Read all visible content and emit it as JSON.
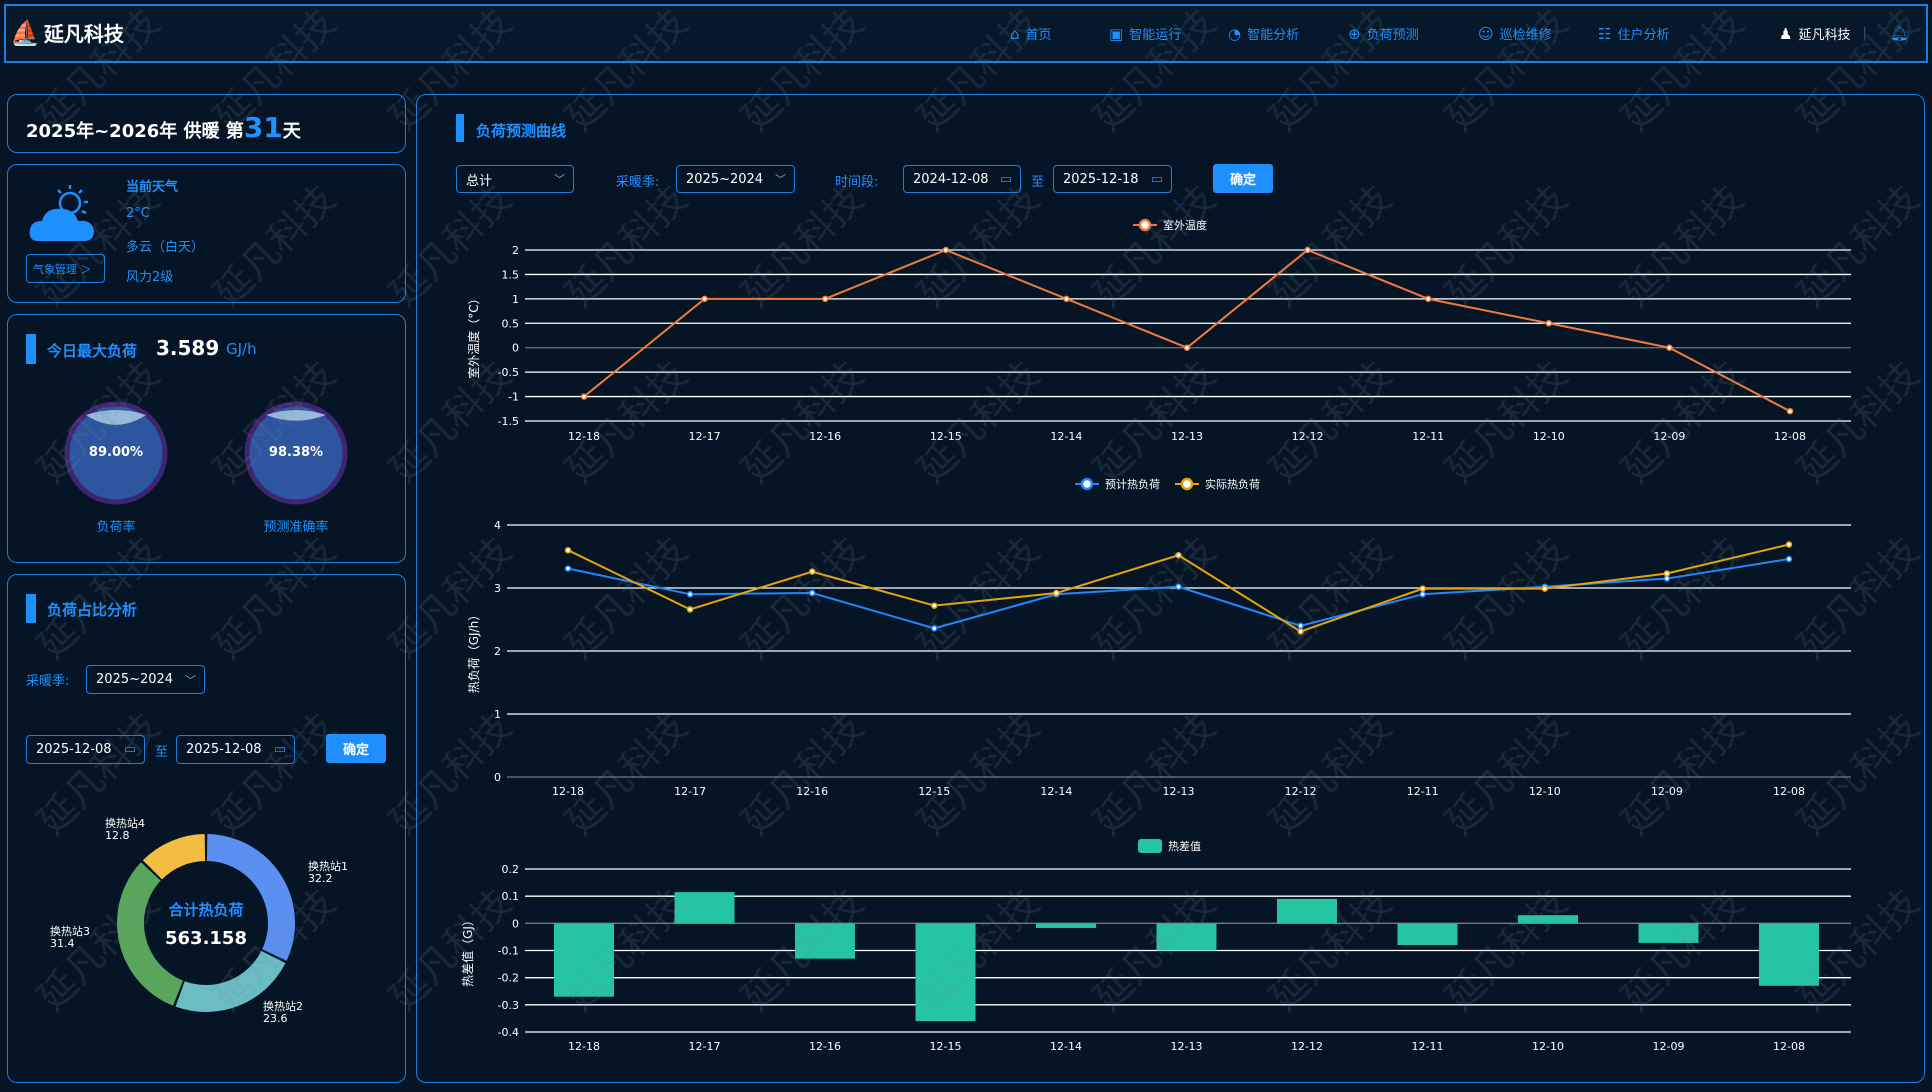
{
  "header": {
    "logo": "延凡科技",
    "nav": [
      {
        "icon": "home-icon",
        "label": "首页"
      },
      {
        "icon": "monitor-icon",
        "label": "智能运行"
      },
      {
        "icon": "pie-chart-icon",
        "label": "智能分析"
      },
      {
        "icon": "forecast-icon",
        "label": "负荷预测"
      },
      {
        "icon": "engineer-icon",
        "label": "巡检维修"
      },
      {
        "icon": "residents-icon",
        "label": "住户分析"
      }
    ],
    "user": "延凡科技"
  },
  "season": {
    "prefix": "2025年~2026年 供暖 第",
    "day": "31",
    "suffix": "天"
  },
  "weather": {
    "title": "当前天气",
    "temp": "2°C",
    "condition": "多云（白天）",
    "wind": "风力2级",
    "manage_btn": "气象管理 ＞"
  },
  "maxload": {
    "title": "今日最大负荷",
    "value": "3.589",
    "unit": "GJ/h",
    "gauges": [
      {
        "value": "89.00%",
        "fraction": 0.89,
        "label": "负荷率"
      },
      {
        "value": "98.38%",
        "fraction": 0.9838,
        "label": "预测准确率"
      }
    ]
  },
  "ratio": {
    "title": "负荷占比分析",
    "season_label": "采暖季:",
    "season_value": "2025~2024",
    "date_from": "2025-12-08",
    "to": "至",
    "date_to": "2025-12-08",
    "confirm": "确定",
    "center_title": "合计热负荷",
    "center_value": "563.158"
  },
  "forecast": {
    "title": "负荷预测曲线",
    "type_value": "总计",
    "season_label": "采暖季:",
    "season_value": "2025~2024",
    "period_label": "时间段:",
    "date_from": "2024-12-08",
    "to": "至",
    "date_to": "2025-12-18",
    "confirm": "确定"
  },
  "watermark": "延凡科技",
  "chart_data": [
    {
      "type": "pie",
      "title": "合计热负荷",
      "categories": [
        "换热站1",
        "换热站2",
        "换热站3",
        "换热站4"
      ],
      "values": [
        32.2,
        23.6,
        31.4,
        12.8
      ],
      "colors": [
        "#5b8ff0",
        "#6cbcc4",
        "#5aa55c",
        "#f2bd42"
      ]
    },
    {
      "type": "line",
      "categories": [
        "12-18",
        "12-17",
        "12-16",
        "12-15",
        "12-14",
        "12-13",
        "12-12",
        "12-11",
        "12-10",
        "12-09",
        "12-08"
      ],
      "series": [
        {
          "name": "室外温度",
          "values": [
            -1,
            1,
            1,
            2,
            1,
            0,
            2,
            1,
            0.5,
            0,
            -1.3
          ],
          "color": "#f07a3a"
        }
      ],
      "ylabel": "室外温度（°C）",
      "ylim": [
        -1.5,
        2
      ],
      "yticks": [
        "2",
        "1.5",
        "1",
        "0.5",
        "0",
        "-0.5",
        "-1",
        "-1.5"
      ],
      "legend": "top-center"
    },
    {
      "type": "line",
      "categories": [
        "12-18",
        "12-17",
        "12-16",
        "12-15",
        "12-14",
        "12-13",
        "12-12",
        "12-11",
        "12-10",
        "12-09",
        "12-08"
      ],
      "series": [
        {
          "name": "预计热负荷",
          "values": [
            3.31,
            2.9,
            2.92,
            2.36,
            2.9,
            3.02,
            2.4,
            2.9,
            3.02,
            3.15,
            3.46
          ],
          "color": "#1e88ff"
        },
        {
          "name": "实际热负荷",
          "values": [
            3.6,
            2.66,
            3.26,
            2.72,
            2.92,
            3.52,
            2.31,
            2.99,
            2.99,
            3.23,
            3.69
          ],
          "color": "#e5a50a"
        }
      ],
      "ylabel": "热负荷（GJ/h）",
      "ylim": [
        0,
        4
      ],
      "yticks": [
        "4",
        "3",
        "2",
        "1",
        "0"
      ],
      "legend": "top-center"
    },
    {
      "type": "bar",
      "categories": [
        "12-18",
        "12-17",
        "12-16",
        "12-15",
        "12-14",
        "12-13",
        "12-12",
        "12-11",
        "12-10",
        "12-09",
        "12-08"
      ],
      "series": [
        {
          "name": "热差值",
          "values": [
            -0.27,
            0.115,
            -0.13,
            -0.36,
            -0.017,
            -0.1,
            0.09,
            -0.08,
            0.03,
            -0.072,
            -0.23
          ],
          "color": "#25c4a3"
        }
      ],
      "ylabel": "热差值（GJ）",
      "ylim": [
        -0.4,
        0.2
      ],
      "yticks": [
        "0.2",
        "0.1",
        "0",
        "-0.1",
        "-0.2",
        "-0.3",
        "-0.4"
      ],
      "legend": "top-center"
    }
  ]
}
